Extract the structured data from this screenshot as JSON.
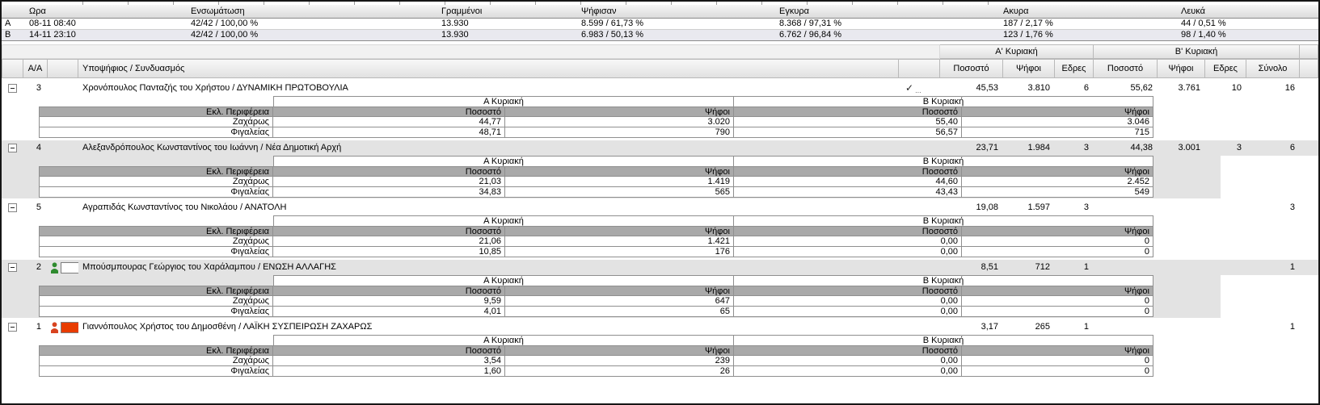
{
  "summary_table": {
    "columns": [
      "Ωρα",
      "Ενσωμάτωση",
      "Γραμμένοι",
      "Ψήφισαν",
      "Εγκυρα",
      "Ακυρα",
      "Λευκά"
    ],
    "rows": [
      {
        "label": "A",
        "time": "08-11 08:40",
        "integration": "42/42 / 100,00 %",
        "registered": "13.930",
        "voted": "8.599 / 61,73 %",
        "valid": "8.368 / 97,31 %",
        "invalid": "187 / 2,17 %",
        "blank": "44 / 0,51 %"
      },
      {
        "label": "B",
        "time": "14-11 23:10",
        "integration": "42/42 / 100,00 %",
        "registered": "13.930",
        "voted": "6.983 / 50,13 %",
        "valid": "6.762 / 96,84 %",
        "invalid": "123 / 1,76 %",
        "blank": "98 / 1,40 %"
      }
    ]
  },
  "results_table": {
    "group_headers": {
      "a": "Α' Κυριακή",
      "b": "Β' Κυριακή"
    },
    "columns": {
      "aa": "Α/Α",
      "candidate": "Υποψήφιος / Συνδυασμός",
      "pct": "Ποσοστό",
      "votes": "Ψήφοι",
      "seats": "Εδρες",
      "total": "Σύνολο"
    },
    "subtable": {
      "region_col": "Εκλ. Περιφέρεια",
      "group_a": "Α Κυριακή",
      "group_b": "Β Κυριακή",
      "pct": "Ποσοστό",
      "votes": "Ψήφοι"
    },
    "elected_mark": "✓",
    "elected_dots": "...",
    "candidates": [
      {
        "aa": "3",
        "name": "Χρονόπουλος Πανταζής του Χρήστου / ΔΥΝΑΜΙΚΗ ΠΡΩΤΟΒΟΥΛΙΑ",
        "elected": true,
        "icon": null,
        "a_pct": "45,53",
        "a_votes": "3.810",
        "a_seats": "6",
        "b_pct": "55,62",
        "b_votes": "3.761",
        "b_seats": "10",
        "total": "16",
        "regions": [
          {
            "name": "Ζαχάρως",
            "a_pct": "44,77",
            "a_votes": "3.020",
            "b_pct": "55,40",
            "b_votes": "3.046"
          },
          {
            "name": "Φιγαλείας",
            "a_pct": "48,71",
            "a_votes": "790",
            "b_pct": "56,57",
            "b_votes": "715"
          }
        ]
      },
      {
        "aa": "4",
        "name": "Αλεξανδρόπουλος Κωνσταντίνος του Ιωάννη / Νέα Δημοτική Αρχή",
        "elected": false,
        "icon": null,
        "a_pct": "23,71",
        "a_votes": "1.984",
        "a_seats": "3",
        "b_pct": "44,38",
        "b_votes": "3.001",
        "b_seats": "3",
        "total": "6",
        "regions": [
          {
            "name": "Ζαχάρως",
            "a_pct": "21,03",
            "a_votes": "1.419",
            "b_pct": "44,60",
            "b_votes": "2.452"
          },
          {
            "name": "Φιγαλείας",
            "a_pct": "34,83",
            "a_votes": "565",
            "b_pct": "43,43",
            "b_votes": "549"
          }
        ]
      },
      {
        "aa": "5",
        "name": "Αγραπιδάς Κωνσταντίνος του Νικολάου / ΑΝΑΤΟΛΗ",
        "elected": false,
        "icon": null,
        "a_pct": "19,08",
        "a_votes": "1.597",
        "a_seats": "3",
        "b_pct": "",
        "b_votes": "",
        "b_seats": "",
        "total": "3",
        "regions": [
          {
            "name": "Ζαχάρως",
            "a_pct": "21,06",
            "a_votes": "1.421",
            "b_pct": "0,00",
            "b_votes": "0"
          },
          {
            "name": "Φιγαλείας",
            "a_pct": "10,85",
            "a_votes": "176",
            "b_pct": "0,00",
            "b_votes": "0"
          }
        ]
      },
      {
        "aa": "2",
        "name": "Μπούσμπουρας Γεώργιος του Χαράλαμπου / ΕΝΩΣΗ ΑΛΛΑΓΗΣ",
        "elected": false,
        "icon": {
          "person": "#2f8b2f",
          "flag": "#ffffff"
        },
        "a_pct": "8,51",
        "a_votes": "712",
        "a_seats": "1",
        "b_pct": "",
        "b_votes": "",
        "b_seats": "",
        "total": "1",
        "regions": [
          {
            "name": "Ζαχάρως",
            "a_pct": "9,59",
            "a_votes": "647",
            "b_pct": "0,00",
            "b_votes": "0"
          },
          {
            "name": "Φιγαλείας",
            "a_pct": "4,01",
            "a_votes": "65",
            "b_pct": "0,00",
            "b_votes": "0"
          }
        ]
      },
      {
        "aa": "1",
        "name": "Γιαννόπουλος Χρήστος του Δημοσθένη / ΛΑΪΚΗ ΣΥΣΠΕΙΡΩΣΗ ΖΑΧΑΡΩΣ",
        "elected": false,
        "icon": {
          "person": "#d8431f",
          "flag": "#e83c00"
        },
        "a_pct": "3,17",
        "a_votes": "265",
        "a_seats": "1",
        "b_pct": "",
        "b_votes": "",
        "b_seats": "",
        "total": "1",
        "regions": [
          {
            "name": "Ζαχάρως",
            "a_pct": "3,54",
            "a_votes": "239",
            "b_pct": "0,00",
            "b_votes": "0"
          },
          {
            "name": "Φιγαλείας",
            "a_pct": "1,60",
            "a_votes": "26",
            "b_pct": "0,00",
            "b_votes": "0"
          }
        ]
      }
    ]
  }
}
